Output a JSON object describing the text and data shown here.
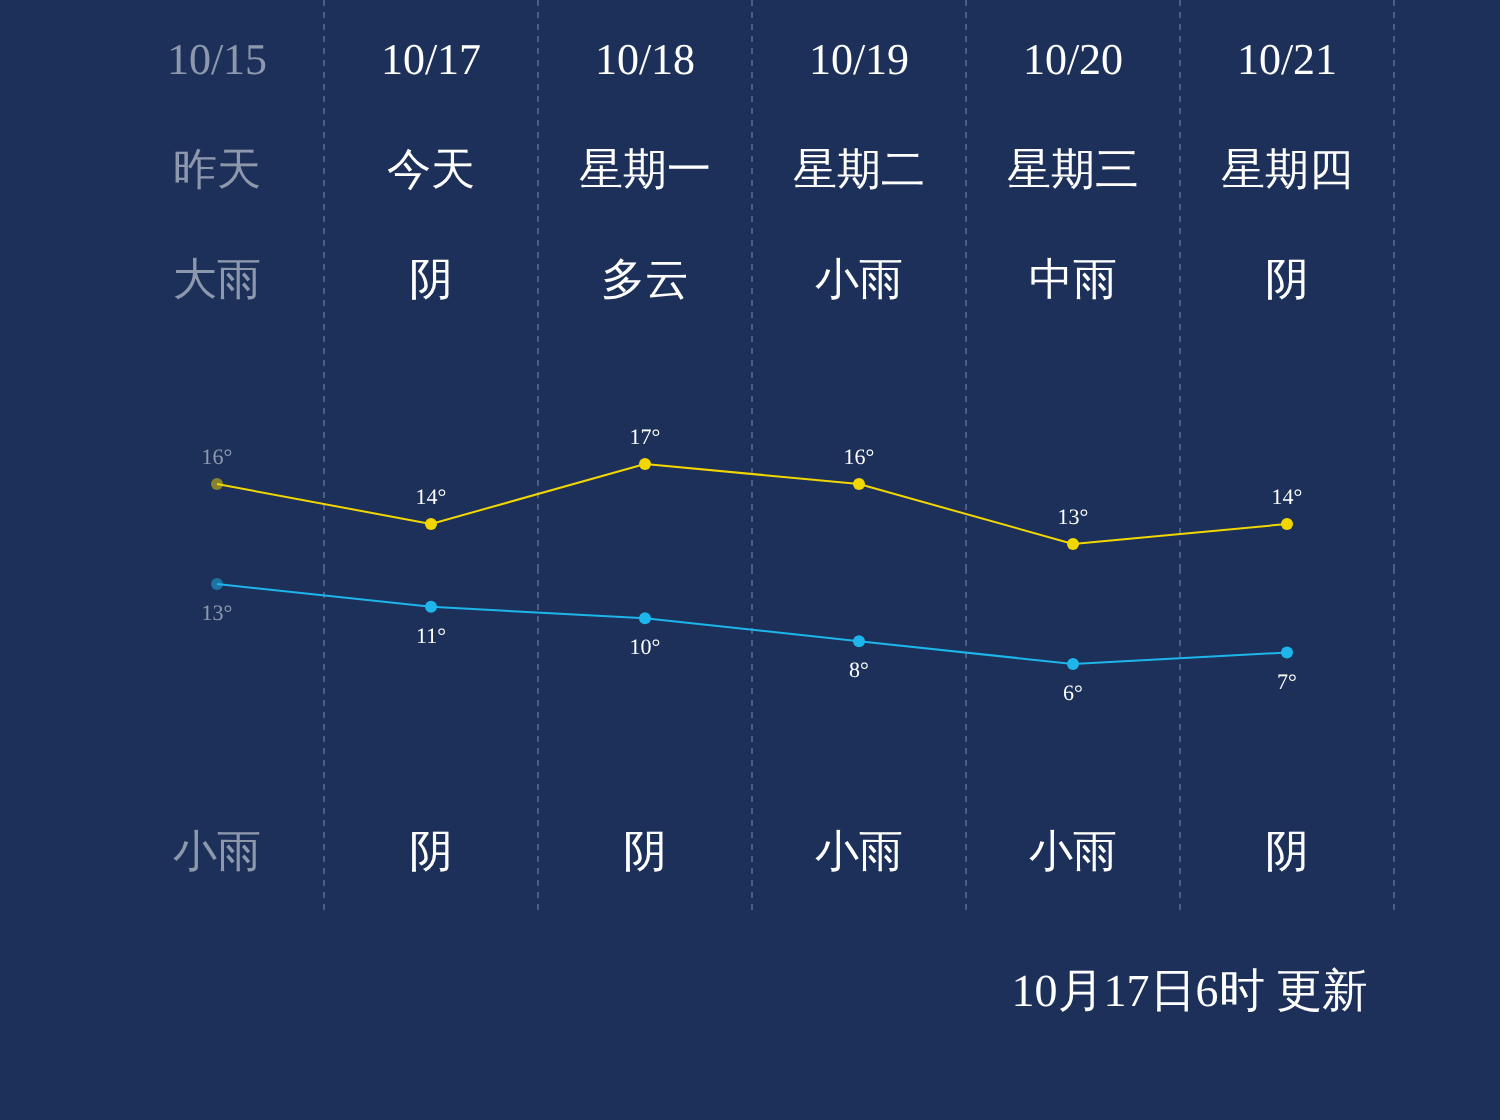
{
  "chart_data": [
    {
      "type": "line",
      "categories": [
        "10/15",
        "10/17",
        "10/18",
        "10/19",
        "10/20",
        "10/21"
      ],
      "series": [
        {
          "color": "#f2d600",
          "values": [
            16,
            14,
            17,
            16,
            13,
            14
          ],
          "value_labels": [
            "16°",
            "14°",
            "17°",
            "16°",
            "13°",
            "14°"
          ]
        }
      ],
      "marker": "circle",
      "line_style": "solid",
      "grid": "x",
      "annotations": [
        "昨天",
        "今天",
        "星期一",
        "星期二",
        "星期三",
        "星期四",
        "大雨",
        "阴",
        "多云",
        "小雨",
        "中雨",
        "阴"
      ]
    },
    {
      "type": "line",
      "categories": [
        null,
        null,
        null,
        null,
        null,
        null
      ],
      "series": [
        {
          "color": "#1eb6ea",
          "values": [
            13,
            11,
            10,
            8,
            6,
            7
          ],
          "value_labels": [
            "13°",
            "11°",
            "10°",
            "8°",
            "6°",
            "7°"
          ]
        }
      ],
      "marker": "circle",
      "line_style": "solid",
      "grid": "x",
      "annotations": [
        "小雨",
        "阴",
        "阴",
        "小雨",
        "小雨",
        "阴",
        "10月17日6时 更新"
      ]
    }
  ]
}
